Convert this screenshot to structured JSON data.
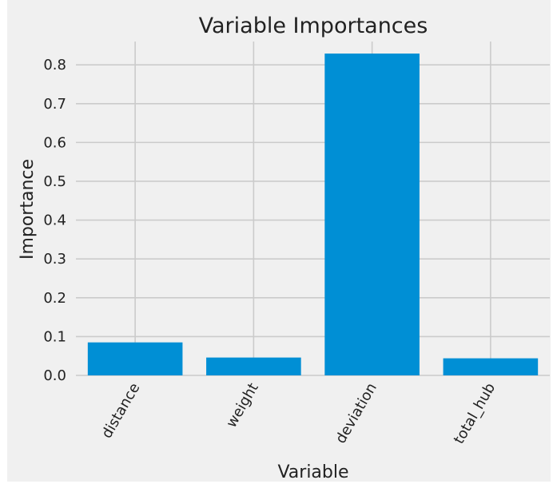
{
  "chart_data": {
    "type": "bar",
    "title": "Variable Importances",
    "xlabel": "Variable",
    "ylabel": "Importance",
    "categories": [
      "distance",
      "weight",
      "deviation",
      "total_hub"
    ],
    "values": [
      0.085,
      0.046,
      0.829,
      0.044
    ],
    "ylim": [
      0,
      0.86
    ],
    "yticks": [
      "0.0",
      "0.1",
      "0.2",
      "0.3",
      "0.4",
      "0.5",
      "0.6",
      "0.7",
      "0.8"
    ],
    "grid": true,
    "legend": "none",
    "bar_color": "#008fd5",
    "background_color": "#f0f0f0",
    "grid_color": "#cbcbcb"
  }
}
